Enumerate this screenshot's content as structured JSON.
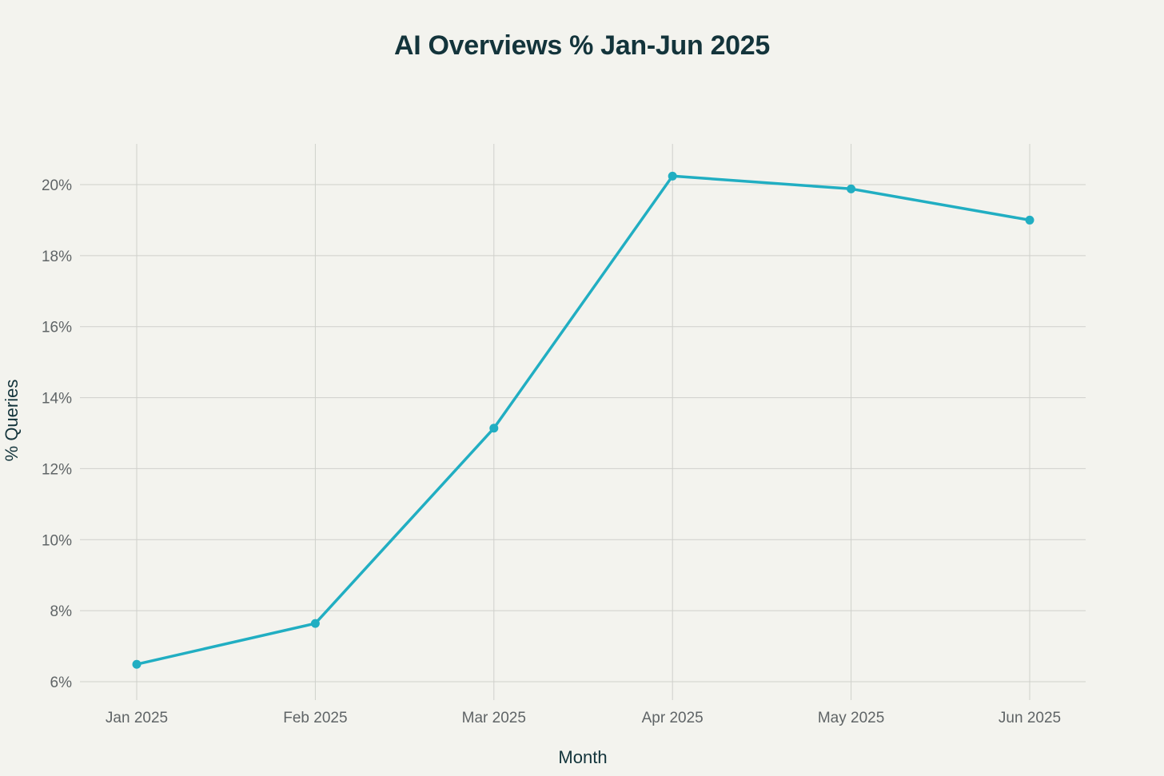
{
  "chart_data": {
    "type": "line",
    "title": "AI Overviews % Jan-Jun 2025",
    "xlabel": "Month",
    "ylabel": "% Queries",
    "categories": [
      "Jan 2025",
      "Feb 2025",
      "Mar 2025",
      "Apr 2025",
      "May 2025",
      "Jun 2025"
    ],
    "series": [
      {
        "values": [
          6.49,
          7.64,
          13.14,
          20.24,
          19.88,
          19.0
        ]
      }
    ],
    "ylim": [
      5.5,
      21.2
    ],
    "yticks": [
      6,
      8,
      10,
      12,
      14,
      16,
      18,
      20
    ],
    "ytick_labels": [
      "6%",
      "8%",
      "10%",
      "12%",
      "14%",
      "16%",
      "18%",
      "20%"
    ],
    "grid": true,
    "legend": "none",
    "colors": {
      "line": "#21aec2",
      "grid": "#cfd0cb",
      "background": "#f3f3ee",
      "title": "#13343b"
    }
  }
}
